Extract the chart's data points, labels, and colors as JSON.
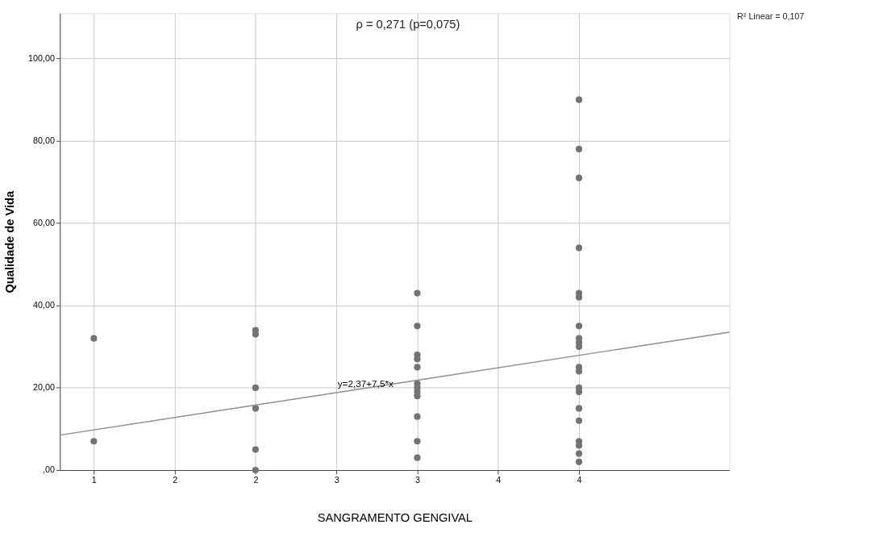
{
  "chart_data": {
    "type": "scatter",
    "xlabel": "SANGRAMENTO GENGIVAL",
    "ylabel": "Qualidade de Vida",
    "xlim": [
      0.79,
      4.93
    ],
    "ylim": [
      0,
      111
    ],
    "xticks": [
      1,
      {
        "value": 1.5,
        "label": "2"
      },
      {
        "value": 2,
        "label": "2"
      },
      {
        "value": 2.5,
        "label": "3"
      },
      {
        "value": 3,
        "label": "3"
      },
      {
        "value": 3.5,
        "label": "4"
      },
      {
        "value": 4,
        "label": "4"
      }
    ],
    "yticks": [
      {
        "value": 0,
        "label": ",00"
      },
      {
        "value": 20,
        "label": "20,00"
      },
      {
        "value": 40,
        "label": "40,00"
      },
      {
        "value": 60,
        "label": "60,00"
      },
      {
        "value": 80,
        "label": "80,00"
      },
      {
        "value": 100,
        "label": "100,00"
      }
    ],
    "grid": true,
    "marker": "circle",
    "series": [
      {
        "color": "#737373",
        "x": [
          1,
          1,
          2,
          2,
          2,
          2,
          2,
          2,
          3,
          3,
          3,
          3,
          3,
          3,
          3,
          3,
          3,
          3,
          3,
          3,
          4,
          4,
          4,
          4,
          4,
          4,
          4,
          4,
          4,
          4,
          4,
          4,
          4,
          4,
          4,
          4,
          4,
          4,
          4,
          4
        ],
        "values": [
          32,
          7,
          34,
          33,
          20,
          15,
          5,
          0,
          43,
          35,
          28,
          27,
          25,
          21,
          20,
          19,
          18,
          13,
          7,
          3,
          90,
          78,
          71,
          54,
          43,
          42,
          35,
          32,
          31,
          30,
          25,
          24,
          20,
          19,
          15,
          12,
          7,
          6,
          4,
          2
        ]
      },
      {
        "type": "line",
        "marker": "none",
        "color": "#8c8c8c",
        "x": [
          0.79,
          4.93
        ],
        "values": [
          8.5,
          33.5
        ]
      }
    ],
    "annotations": [
      "ρ = 0,271 (p=0,075)",
      "R² Linear = 0,107",
      {
        "text": "y=2,37+7,5*x",
        "x": 2.68,
        "y": 21
      }
    ]
  }
}
